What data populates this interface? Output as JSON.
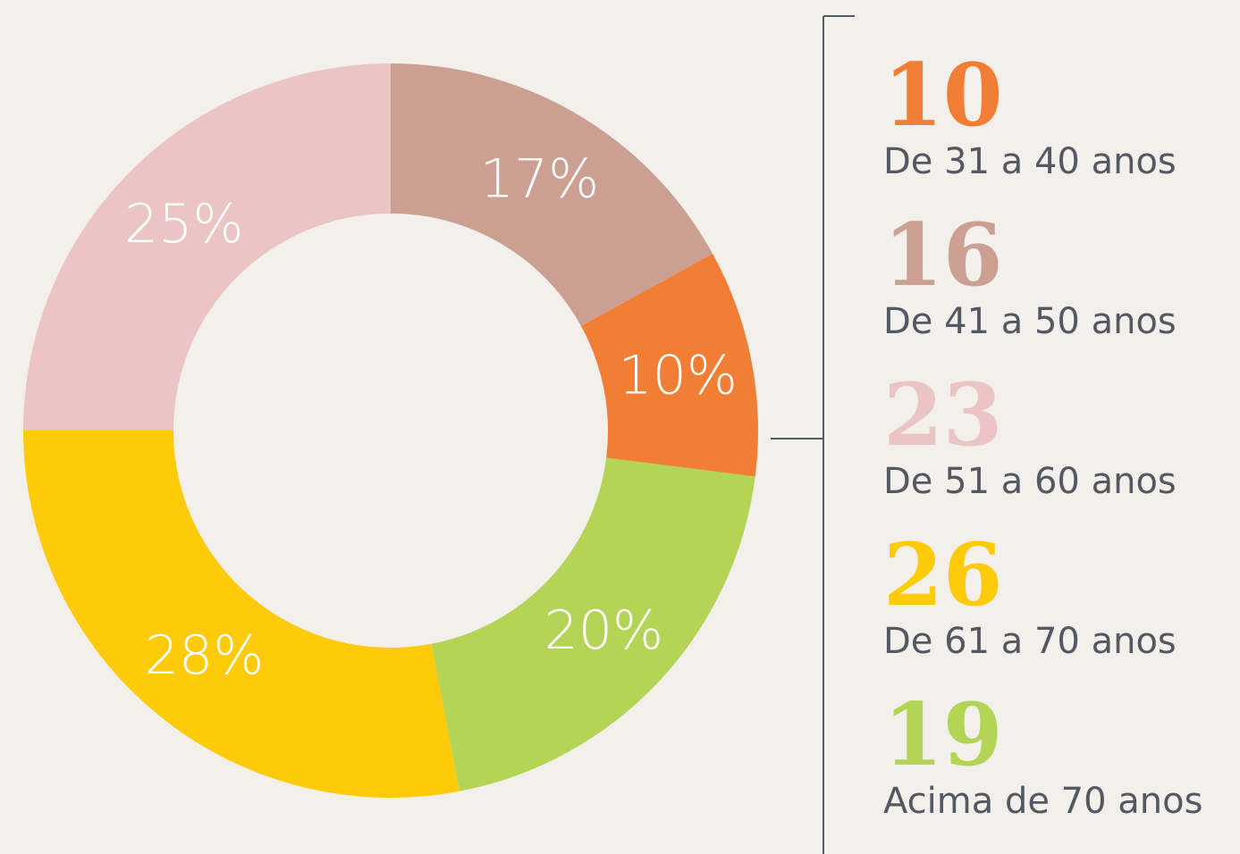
{
  "chart_data": {
    "type": "donut",
    "categories": [
      "De 31 a 40 anos",
      "De 41 a 50 anos",
      "De 51 a 60 anos",
      "De 61 a 70 anos",
      "Acima de 70 anos"
    ],
    "values": [
      10,
      17,
      25,
      28,
      20
    ],
    "value_labels": [
      "10%",
      "17%",
      "25%",
      "28%",
      "20%"
    ],
    "counts": [
      10,
      16,
      23,
      26,
      19
    ],
    "colors": [
      "#f27d35",
      "#cc9f93",
      "#ebc5c3",
      "#fecb0a",
      "#b3d455"
    ]
  }
}
